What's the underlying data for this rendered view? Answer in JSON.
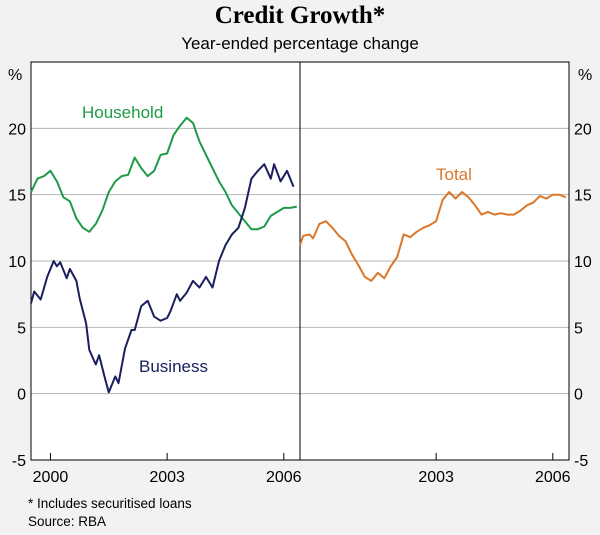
{
  "chart_data": {
    "type": "line",
    "title": "Credit Growth*",
    "subtitle": "Year-ended percentage change",
    "ylabel_left": "%",
    "ylabel_right": "%",
    "ylim": [
      -5,
      25
    ],
    "yticks": [
      -5,
      0,
      5,
      10,
      15,
      20
    ],
    "grid": true,
    "panels": [
      {
        "xlim": [
          "1999-07",
          "2006-06"
        ],
        "xticks": [
          {
            "label": "2000",
            "value": "2000-01"
          },
          {
            "label": "2003",
            "value": "2003-01"
          },
          {
            "label": "2006",
            "value": "2006-01"
          }
        ],
        "series": [
          {
            "name": "Household",
            "color": "#1f9a47",
            "points": [
              [
                "1999-07",
                15.2
              ],
              [
                "1999-09",
                16.2
              ],
              [
                "1999-11",
                16.4
              ],
              [
                "2000-01",
                16.8
              ],
              [
                "2000-03",
                16.0
              ],
              [
                "2000-05",
                14.8
              ],
              [
                "2000-07",
                14.5
              ],
              [
                "2000-09",
                13.2
              ],
              [
                "2000-11",
                12.5
              ],
              [
                "2001-01",
                12.2
              ],
              [
                "2001-03",
                12.8
              ],
              [
                "2001-05",
                13.8
              ],
              [
                "2001-07",
                15.2
              ],
              [
                "2001-09",
                16.0
              ],
              [
                "2001-11",
                16.4
              ],
              [
                "2002-01",
                16.5
              ],
              [
                "2002-03",
                17.8
              ],
              [
                "2002-05",
                17.0
              ],
              [
                "2002-07",
                16.4
              ],
              [
                "2002-09",
                16.8
              ],
              [
                "2002-11",
                18.0
              ],
              [
                "2003-01",
                18.1
              ],
              [
                "2003-03",
                19.5
              ],
              [
                "2003-05",
                20.2
              ],
              [
                "2003-07",
                20.8
              ],
              [
                "2003-09",
                20.4
              ],
              [
                "2003-11",
                19.0
              ],
              [
                "2004-01",
                18.0
              ],
              [
                "2004-03",
                17.0
              ],
              [
                "2004-05",
                16.0
              ],
              [
                "2004-07",
                15.2
              ],
              [
                "2004-09",
                14.2
              ],
              [
                "2004-11",
                13.6
              ],
              [
                "2005-01",
                13.0
              ],
              [
                "2005-03",
                12.4
              ],
              [
                "2005-05",
                12.4
              ],
              [
                "2005-07",
                12.6
              ],
              [
                "2005-09",
                13.4
              ],
              [
                "2005-11",
                13.7
              ],
              [
                "2006-01",
                14.0
              ],
              [
                "2006-03",
                14.0
              ],
              [
                "2006-05",
                14.1
              ]
            ]
          },
          {
            "name": "Business",
            "color": "#1a1f5e",
            "points": [
              [
                "1999-07",
                6.8
              ],
              [
                "1999-08",
                7.7
              ],
              [
                "1999-10",
                7.1
              ],
              [
                "1999-12",
                8.8
              ],
              [
                "2000-02",
                10.0
              ],
              [
                "2000-03",
                9.6
              ],
              [
                "2000-04",
                9.9
              ],
              [
                "2000-06",
                8.7
              ],
              [
                "2000-07",
                9.4
              ],
              [
                "2000-09",
                8.5
              ],
              [
                "2000-10",
                7.2
              ],
              [
                "2000-12",
                5.3
              ],
              [
                "2001-01",
                3.3
              ],
              [
                "2001-03",
                2.2
              ],
              [
                "2001-04",
                2.9
              ],
              [
                "2001-06",
                1.0
              ],
              [
                "2001-07",
                0.1
              ],
              [
                "2001-09",
                1.3
              ],
              [
                "2001-10",
                0.8
              ],
              [
                "2001-12",
                3.4
              ],
              [
                "2002-02",
                4.8
              ],
              [
                "2002-03",
                4.8
              ],
              [
                "2002-05",
                6.6
              ],
              [
                "2002-07",
                7.0
              ],
              [
                "2002-09",
                5.8
              ],
              [
                "2002-11",
                5.5
              ],
              [
                "2003-01",
                5.7
              ],
              [
                "2003-02",
                6.2
              ],
              [
                "2003-04",
                7.5
              ],
              [
                "2003-05",
                7.0
              ],
              [
                "2003-07",
                7.6
              ],
              [
                "2003-09",
                8.5
              ],
              [
                "2003-11",
                8.0
              ],
              [
                "2004-01",
                8.8
              ],
              [
                "2004-03",
                8.0
              ],
              [
                "2004-05",
                10.0
              ],
              [
                "2004-07",
                11.2
              ],
              [
                "2004-09",
                12.0
              ],
              [
                "2004-11",
                12.5
              ],
              [
                "2005-01",
                14.0
              ],
              [
                "2005-03",
                16.2
              ],
              [
                "2005-05",
                16.8
              ],
              [
                "2005-07",
                17.3
              ],
              [
                "2005-09",
                16.2
              ],
              [
                "2005-10",
                17.3
              ],
              [
                "2005-12",
                16.0
              ],
              [
                "2006-02",
                16.8
              ],
              [
                "2006-04",
                15.6
              ]
            ]
          }
        ]
      },
      {
        "xlim": [
          "1999-07",
          "2006-06"
        ],
        "xticks": [
          {
            "label": "2003",
            "value": "2003-01"
          },
          {
            "label": "2006",
            "value": "2006-01"
          }
        ],
        "series": [
          {
            "name": "Total",
            "color": "#d9772b",
            "points": [
              [
                "1999-07",
                11.2
              ],
              [
                "1999-08",
                11.9
              ],
              [
                "1999-10",
                12.0
              ],
              [
                "1999-11",
                11.7
              ],
              [
                "2000-01",
                12.8
              ],
              [
                "2000-03",
                13.0
              ],
              [
                "2000-05",
                12.5
              ],
              [
                "2000-07",
                11.9
              ],
              [
                "2000-09",
                11.5
              ],
              [
                "2000-11",
                10.5
              ],
              [
                "2001-01",
                9.7
              ],
              [
                "2001-03",
                8.8
              ],
              [
                "2001-05",
                8.5
              ],
              [
                "2001-07",
                9.1
              ],
              [
                "2001-09",
                8.7
              ],
              [
                "2001-11",
                9.6
              ],
              [
                "2002-01",
                10.3
              ],
              [
                "2002-03",
                12.0
              ],
              [
                "2002-05",
                11.8
              ],
              [
                "2002-07",
                12.2
              ],
              [
                "2002-09",
                12.5
              ],
              [
                "2002-11",
                12.7
              ],
              [
                "2003-01",
                13.0
              ],
              [
                "2003-03",
                14.6
              ],
              [
                "2003-05",
                15.2
              ],
              [
                "2003-07",
                14.7
              ],
              [
                "2003-09",
                15.2
              ],
              [
                "2003-11",
                14.8
              ],
              [
                "2004-01",
                14.2
              ],
              [
                "2004-03",
                13.5
              ],
              [
                "2004-05",
                13.7
              ],
              [
                "2004-07",
                13.5
              ],
              [
                "2004-09",
                13.6
              ],
              [
                "2004-11",
                13.5
              ],
              [
                "2005-01",
                13.5
              ],
              [
                "2005-03",
                13.8
              ],
              [
                "2005-05",
                14.2
              ],
              [
                "2005-07",
                14.4
              ],
              [
                "2005-09",
                14.9
              ],
              [
                "2005-11",
                14.7
              ],
              [
                "2006-01",
                15.0
              ],
              [
                "2006-03",
                15.0
              ],
              [
                "2006-05",
                14.8
              ]
            ]
          }
        ]
      }
    ],
    "annotations": [
      "Household",
      "Business",
      "Total"
    ]
  },
  "footnotes": {
    "note": "*   Includes securitised loans",
    "source": "Source: RBA"
  }
}
